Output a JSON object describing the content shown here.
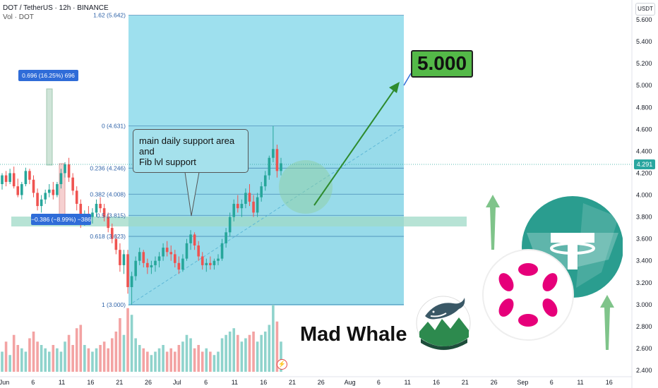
{
  "header": {
    "title": "DOT / TetherUS · 12h · BINANCE",
    "volume_label": "Vol · DOT"
  },
  "currency_badge": "USDT",
  "last_price": "4.291",
  "callout": {
    "lines": [
      "main daily support area",
      "and",
      "Fib lvl support"
    ]
  },
  "target_label": "5.000",
  "watermark": "Mad Whale",
  "measure_up": "0.696 (16.25%) 696",
  "measure_down": "−0.386 (−8.99%) −386",
  "fib_levels": [
    {
      "label": "1.62 (5.642)",
      "value": 5.642
    },
    {
      "label": "0 (4.631)",
      "value": 4.631
    },
    {
      "label": "0.236 (4.246)",
      "value": 4.246
    },
    {
      "label": "0.382 (4.008)",
      "value": 4.008
    },
    {
      "label": "0.5 (3.815)",
      "value": 3.815
    },
    {
      "label": "0.618 (3.623)",
      "value": 3.623
    },
    {
      "label": "1 (3.000)",
      "value": 3.0
    }
  ],
  "colors": {
    "up": "#26a69a",
    "down": "#ef5350",
    "fib_zone": "#86d5e6",
    "support_band": "#9fd9c7",
    "arrow": "#2e8b2e",
    "target_bg": "#54b948"
  },
  "icons": {
    "tether_logo": "tether-icon",
    "polkadot_logo": "polkadot-icon",
    "whale_logo": "whale-icon",
    "up_arrows": "arrow-up-icon"
  },
  "chart_data": {
    "type": "candlestick",
    "title": "DOT / TetherUS · 12h · BINANCE",
    "ylim": [
      2.4,
      5.7
    ],
    "y_ticks": [
      "5.600",
      "5.400",
      "5.200",
      "5.000",
      "4.800",
      "4.600",
      "4.400",
      "4.200",
      "4.000",
      "3.800",
      "3.600",
      "3.400",
      "3.200",
      "3.000",
      "2.800",
      "2.600",
      "2.400"
    ],
    "x_ticks": [
      "Jun",
      "6",
      "11",
      "16",
      "21",
      "26",
      "Jul",
      "6",
      "11",
      "16",
      "21",
      "26",
      "Aug",
      "6",
      "11",
      "16",
      "21",
      "26",
      "Sep",
      "6",
      "11",
      "16"
    ],
    "support_zone": [
      3.75,
      3.84
    ],
    "projected_target": 5.0,
    "last_price": 4.291,
    "ohlc": [
      [
        4.1,
        4.2,
        4.05,
        4.18
      ],
      [
        4.18,
        4.22,
        4.08,
        4.12
      ],
      [
        4.12,
        4.24,
        4.1,
        4.2
      ],
      [
        4.2,
        4.26,
        4.06,
        4.08
      ],
      [
        4.08,
        4.15,
        3.98,
        4.0
      ],
      [
        4.0,
        4.12,
        3.96,
        4.1
      ],
      [
        4.1,
        4.25,
        4.08,
        4.22
      ],
      [
        4.22,
        4.24,
        4.1,
        4.14
      ],
      [
        4.14,
        4.18,
        3.98,
        4.02
      ],
      [
        4.02,
        4.06,
        3.86,
        3.9
      ],
      [
        3.9,
        4.0,
        3.84,
        3.96
      ],
      [
        3.96,
        4.05,
        3.92,
        4.02
      ],
      [
        4.02,
        4.1,
        3.98,
        4.05
      ],
      [
        4.05,
        4.12,
        3.96,
        4.0
      ],
      [
        4.0,
        4.12,
        3.98,
        4.1
      ],
      [
        4.1,
        4.24,
        4.06,
        4.2
      ],
      [
        4.2,
        4.3,
        4.16,
        4.28
      ],
      [
        4.28,
        4.34,
        4.12,
        4.16
      ],
      [
        4.16,
        4.2,
        4.0,
        4.04
      ],
      [
        4.04,
        4.08,
        3.86,
        3.92
      ],
      [
        3.92,
        3.96,
        3.7,
        3.76
      ],
      [
        3.76,
        3.86,
        3.72,
        3.82
      ],
      [
        3.82,
        3.9,
        3.76,
        3.8
      ],
      [
        3.8,
        3.88,
        3.74,
        3.84
      ],
      [
        3.84,
        3.96,
        3.8,
        3.92
      ],
      [
        3.92,
        3.98,
        3.84,
        3.88
      ],
      [
        3.88,
        3.92,
        3.76,
        3.8
      ],
      [
        3.8,
        3.84,
        3.66,
        3.7
      ],
      [
        3.7,
        3.74,
        3.56,
        3.6
      ],
      [
        3.6,
        3.64,
        3.46,
        3.5
      ],
      [
        3.5,
        3.56,
        3.3,
        3.36
      ],
      [
        3.36,
        3.5,
        3.28,
        3.46
      ],
      [
        3.46,
        3.5,
        3.1,
        3.16
      ],
      [
        3.16,
        3.3,
        3.0,
        3.26
      ],
      [
        3.26,
        3.44,
        3.22,
        3.4
      ],
      [
        3.4,
        3.52,
        3.36,
        3.48
      ],
      [
        3.48,
        3.5,
        3.34,
        3.38
      ],
      [
        3.38,
        3.42,
        3.28,
        3.34
      ],
      [
        3.34,
        3.4,
        3.28,
        3.36
      ],
      [
        3.36,
        3.44,
        3.3,
        3.4
      ],
      [
        3.4,
        3.48,
        3.34,
        3.44
      ],
      [
        3.44,
        3.56,
        3.4,
        3.52
      ],
      [
        3.52,
        3.58,
        3.44,
        3.48
      ],
      [
        3.48,
        3.54,
        3.4,
        3.46
      ],
      [
        3.46,
        3.5,
        3.34,
        3.38
      ],
      [
        3.38,
        3.44,
        3.28,
        3.32
      ],
      [
        3.32,
        3.46,
        3.3,
        3.42
      ],
      [
        3.42,
        3.6,
        3.4,
        3.56
      ],
      [
        3.56,
        3.68,
        3.5,
        3.64
      ],
      [
        3.64,
        3.66,
        3.5,
        3.54
      ],
      [
        3.54,
        3.58,
        3.4,
        3.44
      ],
      [
        3.44,
        3.48,
        3.32,
        3.36
      ],
      [
        3.36,
        3.42,
        3.3,
        3.38
      ],
      [
        3.38,
        3.44,
        3.32,
        3.36
      ],
      [
        3.36,
        3.42,
        3.32,
        3.4
      ],
      [
        3.4,
        3.46,
        3.36,
        3.42
      ],
      [
        3.42,
        3.6,
        3.4,
        3.56
      ],
      [
        3.56,
        3.7,
        3.52,
        3.66
      ],
      [
        3.66,
        3.84,
        3.62,
        3.8
      ],
      [
        3.8,
        3.96,
        3.76,
        3.92
      ],
      [
        3.92,
        4.0,
        3.84,
        3.88
      ],
      [
        3.88,
        3.96,
        3.8,
        3.92
      ],
      [
        3.92,
        4.06,
        3.88,
        4.02
      ],
      [
        4.02,
        4.1,
        3.9,
        3.94
      ],
      [
        3.94,
        4.0,
        3.8,
        3.84
      ],
      [
        3.84,
        4.02,
        3.8,
        3.98
      ],
      [
        3.98,
        4.12,
        3.94,
        4.08
      ],
      [
        4.08,
        4.22,
        4.04,
        4.18
      ],
      [
        4.18,
        4.36,
        4.14,
        4.34
      ],
      [
        4.34,
        4.63,
        4.3,
        4.42
      ],
      [
        4.42,
        4.46,
        4.16,
        4.22
      ],
      [
        4.22,
        4.34,
        4.18,
        4.29
      ]
    ],
    "volume": [
      0.3,
      0.45,
      0.25,
      0.55,
      0.4,
      0.35,
      0.3,
      0.5,
      0.6,
      0.45,
      0.4,
      0.35,
      0.3,
      0.4,
      0.35,
      0.3,
      0.45,
      0.55,
      0.4,
      0.65,
      0.7,
      0.4,
      0.35,
      0.3,
      0.35,
      0.4,
      0.45,
      0.35,
      0.5,
      0.6,
      0.8,
      0.55,
      0.95,
      0.85,
      0.5,
      0.4,
      0.35,
      0.3,
      0.25,
      0.3,
      0.35,
      0.4,
      0.3,
      0.35,
      0.3,
      0.4,
      0.45,
      0.55,
      0.5,
      0.35,
      0.4,
      0.3,
      0.35,
      0.3,
      0.25,
      0.3,
      0.5,
      0.55,
      0.6,
      0.65,
      0.55,
      0.45,
      0.5,
      0.55,
      0.6,
      0.45,
      0.55,
      0.6,
      0.7,
      1.0,
      0.75,
      0.45
    ]
  }
}
